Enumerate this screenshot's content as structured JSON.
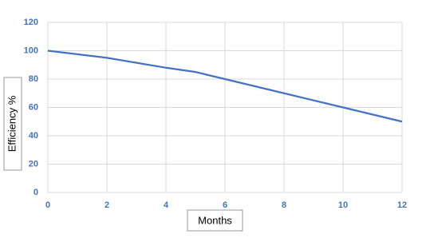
{
  "chart_data": {
    "type": "line",
    "x_label": "Months",
    "y_label": "Efficiency %",
    "x": [
      0,
      2,
      4,
      5,
      6,
      8,
      10,
      12
    ],
    "series": [
      {
        "name": "Efficiency",
        "color": "#4472c4",
        "values": [
          100,
          95,
          88,
          85,
          80,
          70,
          60,
          50
        ]
      }
    ],
    "xlim": [
      0,
      12
    ],
    "xticks": [
      0,
      2,
      4,
      6,
      8,
      10,
      12
    ],
    "ylim": [
      0,
      120
    ],
    "yticks": [
      0,
      20,
      40,
      60,
      80,
      100,
      120
    ],
    "grid": true
  }
}
